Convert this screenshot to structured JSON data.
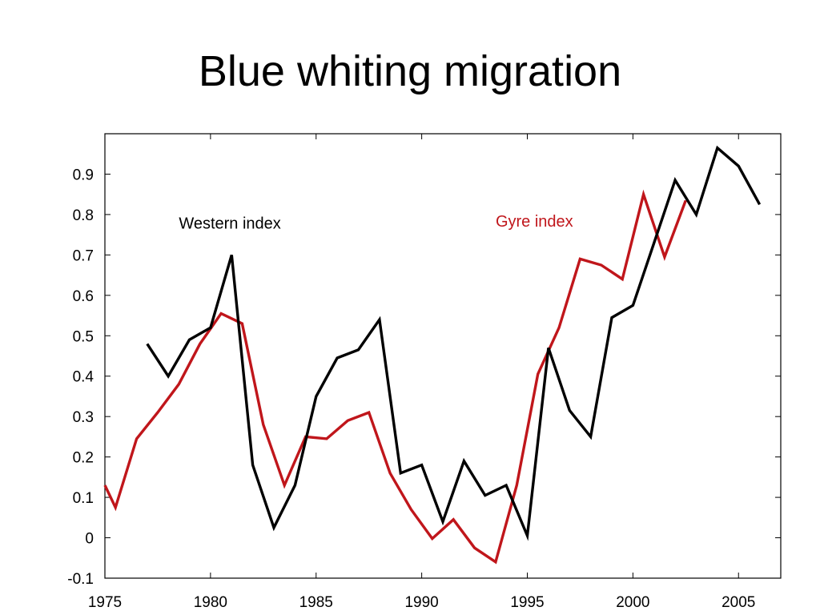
{
  "chart_data": {
    "type": "line",
    "title": "Blue whiting migration",
    "xlabel": "",
    "ylabel": "",
    "xlim": [
      1975,
      2007
    ],
    "ylim": [
      -0.1,
      1.0
    ],
    "xticks": [
      1975,
      1980,
      1985,
      1990,
      1995,
      2000,
      2005
    ],
    "yticks": [
      -0.1,
      0,
      0.1,
      0.2,
      0.3,
      0.4,
      0.5,
      0.6,
      0.7,
      0.8,
      0.9
    ],
    "ytick_labels": [
      "-0.1",
      "0",
      "0.1",
      "0.2",
      "0.3",
      "0.4",
      "0.5",
      "0.6",
      "0.7",
      "0.8",
      "0.9"
    ],
    "grid": false,
    "series": [
      {
        "name": "Western index",
        "color": "#000000",
        "label_anchor": [
          1978.5,
          0.765
        ],
        "x": [
          1977,
          1978,
          1979,
          1980,
          1981,
          1982,
          1983,
          1984,
          1985,
          1986,
          1987,
          1988,
          1989,
          1990,
          1991,
          1992,
          1993,
          1994,
          1995,
          1996,
          1997,
          1998,
          1999,
          2000,
          2001,
          2002,
          2003,
          2004,
          2005,
          2006
        ],
        "values": [
          0.48,
          0.4,
          0.49,
          0.52,
          0.7,
          0.18,
          0.025,
          0.13,
          0.35,
          0.445,
          0.465,
          0.54,
          0.16,
          0.18,
          0.04,
          0.19,
          0.105,
          0.13,
          0.005,
          0.47,
          0.315,
          0.25,
          0.545,
          0.575,
          0.73,
          0.885,
          0.8,
          0.965,
          0.92,
          0.825
        ]
      },
      {
        "name": "Gyre index",
        "color": "#c0161b",
        "label_anchor": [
          1993.5,
          0.77
        ],
        "x": [
          1975,
          1975.5,
          1976.5,
          1977.5,
          1978.5,
          1979.5,
          1980.5,
          1981.5,
          1982.5,
          1983.5,
          1984.5,
          1985.5,
          1986.5,
          1987.5,
          1988.5,
          1989.5,
          1990.5,
          1991.5,
          1992.5,
          1993.5,
          1994.5,
          1995.5,
          1996.5,
          1997.5,
          1998.5,
          1999.5,
          2000.5,
          2001.5,
          2002.5
        ],
        "values": [
          0.13,
          0.075,
          0.245,
          0.31,
          0.38,
          0.48,
          0.555,
          0.53,
          0.28,
          0.13,
          0.25,
          0.245,
          0.29,
          0.31,
          0.16,
          0.07,
          -0.002,
          0.045,
          -0.025,
          -0.06,
          0.13,
          0.405,
          0.52,
          0.69,
          0.675,
          0.64,
          0.85,
          0.695,
          0.835
        ]
      }
    ]
  }
}
